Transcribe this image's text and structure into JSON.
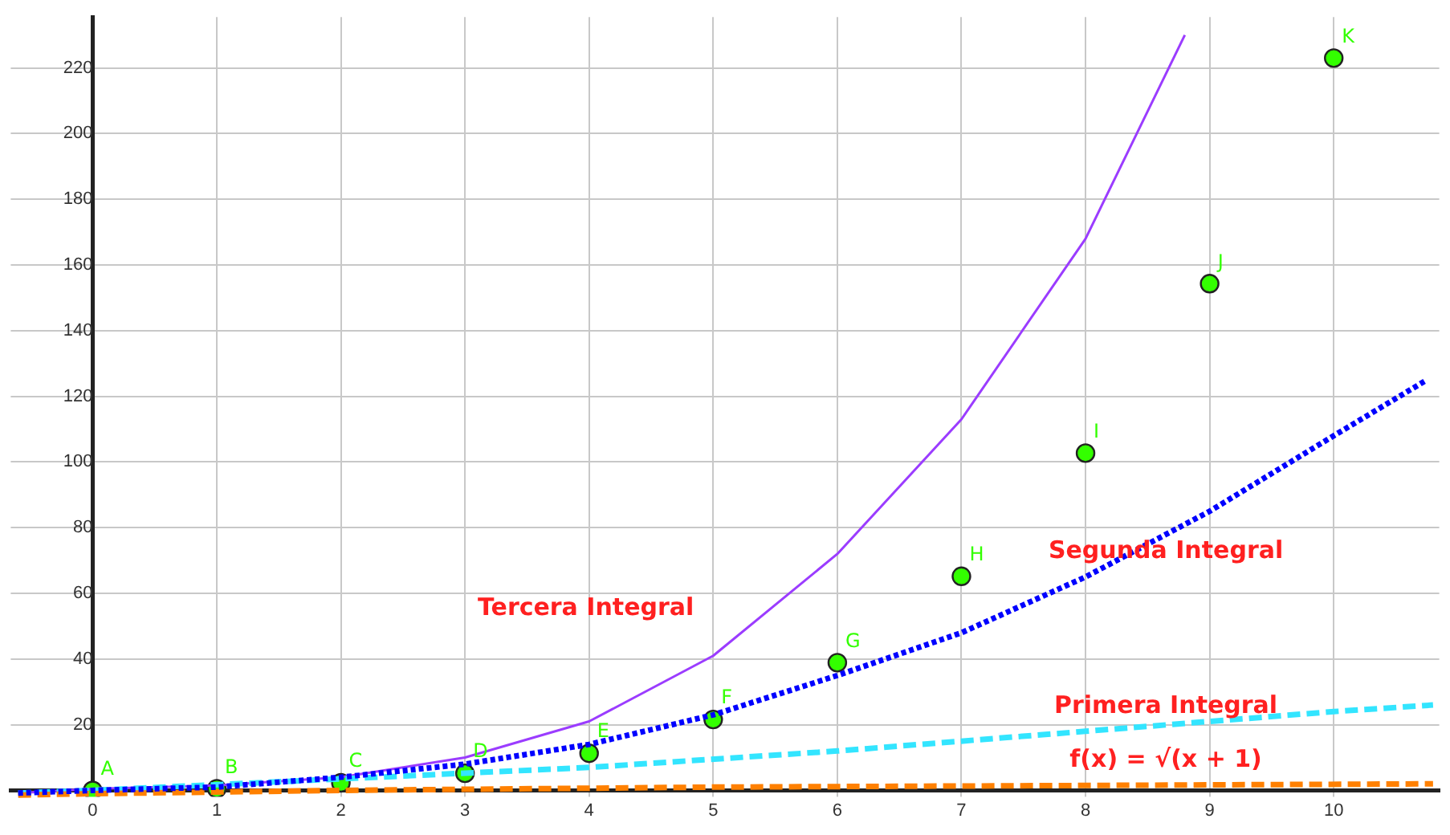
{
  "chart_data": {
    "type": "line",
    "xlim": [
      -0.66,
      10.85
    ],
    "ylim": [
      -8.4,
      235.5
    ],
    "xticks": [
      0,
      1,
      2,
      3,
      4,
      5,
      6,
      7,
      8,
      9,
      10
    ],
    "yticks": [
      0,
      20,
      40,
      60,
      80,
      100,
      120,
      140,
      160,
      180,
      200,
      220
    ],
    "grid": true,
    "legend": false,
    "series": [
      {
        "type": "line",
        "name": "f(x) = √(x + 1)",
        "color": "#ff8000",
        "line_style": "dashed",
        "marker": "none",
        "x": [
          -0.6,
          0,
          2,
          5,
          8,
          10.8
        ],
        "values": [
          -1.4,
          -1,
          0,
          1,
          1.5,
          2
        ]
      },
      {
        "type": "line",
        "name": "Primera Integral",
        "color": "#33e5ff",
        "line_style": "dashed",
        "marker": "none",
        "x": [
          -0.6,
          0,
          2,
          4,
          6,
          8,
          10,
          10.8
        ],
        "values": [
          -0.8,
          0,
          3.5,
          7,
          12,
          18,
          24,
          26
        ]
      },
      {
        "type": "line",
        "name": "Segunda Integral",
        "color": "#0000ff",
        "line_style": "dotted",
        "marker": "none",
        "x": [
          -0.6,
          0,
          1,
          2,
          3,
          4,
          5,
          6,
          7,
          8,
          9,
          10,
          10.75
        ],
        "values": [
          -0.8,
          0,
          1,
          4,
          8,
          14,
          23,
          35,
          48,
          65,
          85,
          108,
          125
        ]
      },
      {
        "type": "line",
        "name": "Tercera Integral",
        "color": "#9b3cff",
        "line_style": "solid",
        "marker": "none",
        "x": [
          -0.6,
          0,
          1,
          2,
          3,
          4,
          5,
          6,
          7,
          8,
          8.8
        ],
        "values": [
          -0.8,
          0.5,
          1.5,
          4,
          10,
          21,
          41,
          72,
          113,
          168,
          230
        ]
      },
      {
        "type": "scatter",
        "color": "#33ff00",
        "marker": "circle",
        "x": [
          0,
          1,
          2,
          3,
          4,
          5,
          6,
          7,
          8,
          9,
          10
        ],
        "values": [
          0,
          0.5,
          2.3,
          5.2,
          11.3,
          21.6,
          38.9,
          65.2,
          102.7,
          154.3,
          223
        ],
        "value_labels": [
          "A",
          "B",
          "C",
          "D",
          "E",
          "F",
          "G",
          "H",
          "I",
          "J",
          "K"
        ]
      }
    ]
  }
}
